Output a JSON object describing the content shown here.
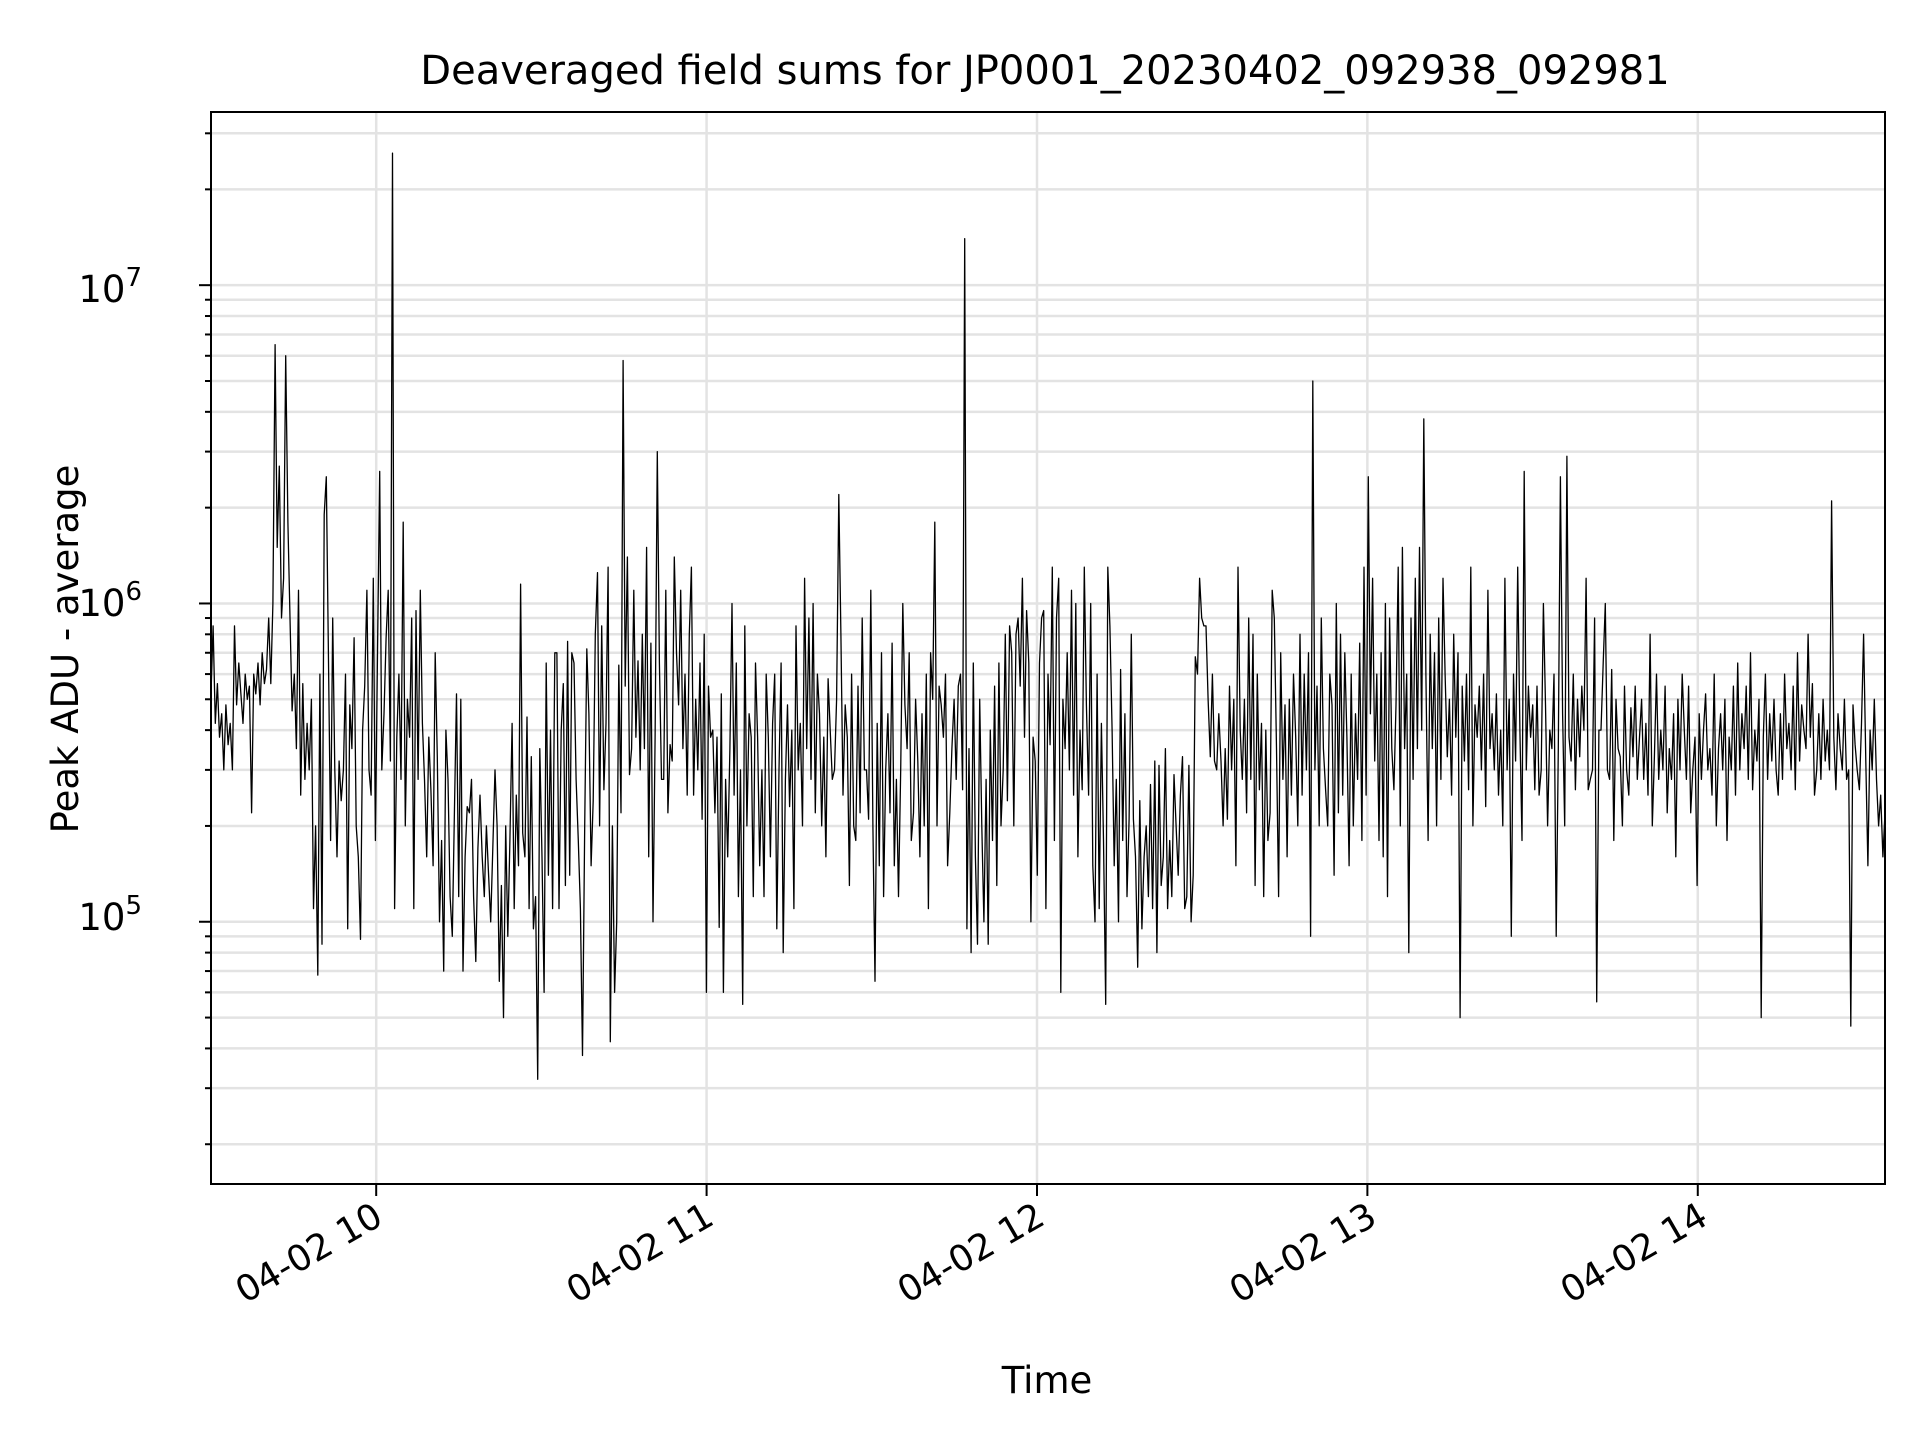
{
  "chart_data": {
    "type": "line",
    "title": "Deaveraged field sums for JP0001_20230402_092938_092981",
    "xlabel": "Time",
    "ylabel": "Peak ADU - average",
    "xlim": [
      "04-02 09:30",
      "04-02 14:34"
    ],
    "ylim": [
      15000,
      35000000
    ],
    "y_scale": "log",
    "grid": "major and minor",
    "x_tick_labels": [
      "04-02 10",
      "04-02 11",
      "04-02 12",
      "04-02 13",
      "04-02 14"
    ],
    "y_tick_labels": [
      {
        "base": "10",
        "exp": "5"
      },
      {
        "base": "10",
        "exp": "6"
      },
      {
        "base": "10",
        "exp": "7"
      }
    ],
    "series": [
      {
        "color": "#000000",
        "x_start": "04-02 09:30",
        "x_end": "04-02 14:34",
        "values": [
          520000,
          850000,
          420000,
          560000,
          380000,
          450000,
          300000,
          480000,
          360000,
          420000,
          300000,
          850000,
          480000,
          650000,
          520000,
          420000,
          600000,
          500000,
          550000,
          220000,
          600000,
          520000,
          650000,
          480000,
          700000,
          560000,
          620000,
          900000,
          560000,
          1000000,
          6500000,
          1500000,
          2700000,
          900000,
          1200000,
          6000000,
          1800000,
          900000,
          460000,
          600000,
          350000,
          1100000,
          250000,
          560000,
          280000,
          420000,
          300000,
          500000,
          110000,
          200000,
          68000,
          600000,
          85000,
          1900000,
          2500000,
          700000,
          180000,
          900000,
          300000,
          160000,
          320000,
          240000,
          300000,
          600000,
          95000,
          480000,
          350000,
          780000,
          200000,
          160000,
          88000,
          400000,
          550000,
          1100000,
          300000,
          250000,
          1200000,
          180000,
          700000,
          2600000,
          300000,
          450000,
          780000,
          1100000,
          320000,
          26000000,
          110000,
          380000,
          600000,
          280000,
          1800000,
          200000,
          500000,
          380000,
          900000,
          110000,
          950000,
          280000,
          1100000,
          420000,
          280000,
          160000,
          380000,
          260000,
          150000,
          700000,
          330000,
          100000,
          180000,
          70000,
          400000,
          280000,
          120000,
          90000,
          220000,
          520000,
          120000,
          500000,
          70000,
          160000,
          230000,
          220000,
          280000,
          120000,
          75000,
          170000,
          250000,
          160000,
          120000,
          200000,
          140000,
          100000,
          170000,
          300000,
          200000,
          65000,
          130000,
          50000,
          200000,
          90000,
          180000,
          420000,
          110000,
          250000,
          150000,
          1150000,
          190000,
          160000,
          440000,
          110000,
          330000,
          95000,
          120000,
          32000,
          350000,
          160000,
          60000,
          650000,
          140000,
          400000,
          110000,
          700000,
          700000,
          110000,
          400000,
          560000,
          130000,
          760000,
          140000,
          700000,
          650000,
          280000,
          180000,
          110000,
          38000,
          200000,
          720000,
          450000,
          150000,
          240000,
          800000,
          1250000,
          200000,
          850000,
          260000,
          420000,
          1300000,
          42000,
          200000,
          60000,
          100000,
          640000,
          220000,
          5800000,
          550000,
          1400000,
          290000,
          350000,
          1100000,
          380000,
          660000,
          300000,
          800000,
          350000,
          1500000,
          160000,
          750000,
          100000,
          380000,
          3000000,
          650000,
          280000,
          280000,
          1100000,
          220000,
          360000,
          320000,
          1400000,
          700000,
          480000,
          1100000,
          350000,
          600000,
          250000,
          800000,
          1300000,
          250000,
          500000,
          300000,
          650000,
          210000,
          800000,
          60000,
          550000,
          380000,
          400000,
          220000,
          380000,
          96000,
          520000,
          60000,
          280000,
          160000,
          350000,
          1000000,
          250000,
          650000,
          120000,
          300000,
          55000,
          850000,
          200000,
          450000,
          380000,
          120000,
          650000,
          380000,
          150000,
          300000,
          120000,
          600000,
          380000,
          160000,
          420000,
          600000,
          95000,
          300000,
          650000,
          80000,
          280000,
          480000,
          230000,
          400000,
          110000,
          850000,
          300000,
          420000,
          200000,
          1200000,
          350000,
          900000,
          280000,
          1000000,
          220000,
          600000,
          450000,
          200000,
          380000,
          160000,
          580000,
          400000,
          280000,
          300000,
          500000,
          2200000,
          800000,
          250000,
          480000,
          380000,
          130000,
          600000,
          200000,
          180000,
          550000,
          220000,
          900000,
          300000,
          300000,
          210000,
          1100000,
          200000,
          65000,
          420000,
          150000,
          700000,
          120000,
          300000,
          450000,
          220000,
          750000,
          150000,
          280000,
          120000,
          300000,
          1000000,
          480000,
          350000,
          700000,
          180000,
          220000,
          500000,
          320000,
          160000,
          450000,
          200000,
          600000,
          110000,
          700000,
          500000,
          1800000,
          200000,
          550000,
          480000,
          380000,
          600000,
          150000,
          220000,
          350000,
          500000,
          280000,
          550000,
          600000,
          260000,
          14000000,
          95000,
          350000,
          80000,
          650000,
          160000,
          85000,
          500000,
          200000,
          100000,
          280000,
          85000,
          400000,
          180000,
          550000,
          130000,
          650000,
          200000,
          300000,
          800000,
          240000,
          850000,
          700000,
          200000,
          800000,
          900000,
          550000,
          1200000,
          380000,
          950000,
          650000,
          100000,
          380000,
          320000,
          140000,
          650000,
          900000,
          950000,
          110000,
          600000,
          360000,
          1300000,
          180000,
          900000,
          1200000,
          60000,
          500000,
          350000,
          700000,
          300000,
          1100000,
          250000,
          1000000,
          160000,
          400000,
          260000,
          1300000,
          480000,
          250000,
          1000000,
          150000,
          100000,
          600000,
          110000,
          420000,
          180000,
          55000,
          1300000,
          850000,
          400000,
          150000,
          280000,
          100000,
          620000,
          180000,
          450000,
          120000,
          210000,
          800000,
          210000,
          160000,
          72000,
          240000,
          95000,
          160000,
          200000,
          120000,
          270000,
          110000,
          320000,
          80000,
          310000,
          130000,
          160000,
          350000,
          110000,
          180000,
          120000,
          290000,
          200000,
          140000,
          250000,
          330000,
          110000,
          120000,
          310000,
          100000,
          140000,
          680000,
          600000,
          1200000,
          900000,
          850000,
          850000,
          500000,
          330000,
          600000,
          320000,
          300000,
          450000,
          320000,
          200000,
          350000,
          210000,
          550000,
          300000,
          500000,
          150000,
          1300000,
          400000,
          280000,
          500000,
          220000,
          900000,
          280000,
          800000,
          130000,
          600000,
          260000,
          420000,
          120000,
          400000,
          180000,
          220000,
          1100000,
          900000,
          350000,
          120000,
          700000,
          280000,
          480000,
          160000,
          500000,
          250000,
          600000,
          380000,
          200000,
          800000,
          250000,
          600000,
          300000,
          700000,
          90000,
          5000000,
          300000,
          550000,
          200000,
          900000,
          350000,
          260000,
          200000,
          600000,
          480000,
          140000,
          1000000,
          220000,
          800000,
          250000,
          700000,
          380000,
          150000,
          600000,
          200000,
          450000,
          280000,
          750000,
          180000,
          1300000,
          250000,
          2500000,
          450000,
          1200000,
          320000,
          600000,
          180000,
          700000,
          160000,
          1000000,
          120000,
          900000,
          350000,
          260000,
          480000,
          1300000,
          200000,
          1500000,
          350000,
          600000,
          80000,
          900000,
          280000,
          1200000,
          350000,
          1500000,
          400000,
          3800000,
          600000,
          180000,
          800000,
          350000,
          700000,
          200000,
          900000,
          280000,
          1200000,
          600000,
          330000,
          500000,
          250000,
          800000,
          380000,
          700000,
          50000,
          550000,
          320000,
          600000,
          260000,
          1300000,
          200000,
          480000,
          380000,
          550000,
          300000,
          600000,
          230000,
          1100000,
          350000,
          450000,
          300000,
          520000,
          250000,
          400000,
          200000,
          1200000,
          300000,
          500000,
          90000,
          600000,
          320000,
          1300000,
          400000,
          180000,
          2600000,
          300000,
          550000,
          380000,
          480000,
          260000,
          550000,
          250000,
          300000,
          1000000,
          480000,
          200000,
          400000,
          350000,
          600000,
          90000,
          350000,
          2500000,
          450000,
          200000,
          2900000,
          380000,
          320000,
          600000,
          260000,
          500000,
          330000,
          550000,
          400000,
          1200000,
          260000,
          280000,
          300000,
          900000,
          56000,
          400000,
          400000,
          650000,
          1000000,
          300000,
          280000,
          620000,
          180000,
          500000,
          350000,
          330000,
          200000,
          550000,
          300000,
          250000,
          470000,
          330000,
          550000,
          280000,
          380000,
          500000,
          280000,
          420000,
          250000,
          800000,
          200000,
          330000,
          600000,
          280000,
          400000,
          300000,
          550000,
          220000,
          350000,
          280000,
          450000,
          160000,
          500000,
          300000,
          600000,
          400000,
          280000,
          550000,
          220000,
          300000,
          380000,
          130000,
          450000,
          280000,
          400000,
          520000,
          300000,
          350000,
          250000,
          600000,
          200000,
          350000,
          450000,
          300000,
          500000,
          180000,
          380000,
          300000,
          550000,
          250000,
          650000,
          300000,
          450000,
          350000,
          550000,
          280000,
          700000,
          260000,
          400000,
          320000,
          500000,
          50000,
          380000,
          600000,
          280000,
          450000,
          320000,
          500000,
          300000,
          250000,
          450000,
          280000,
          600000,
          350000,
          420000,
          300000,
          550000,
          260000,
          700000,
          320000,
          480000,
          400000,
          350000,
          800000,
          380000,
          560000,
          250000,
          300000,
          450000,
          280000,
          500000,
          320000,
          400000,
          300000,
          2100000,
          380000,
          260000,
          450000,
          350000,
          300000,
          500000,
          280000,
          300000,
          47000,
          480000,
          360000,
          300000,
          260000,
          420000,
          800000,
          320000,
          150000,
          400000,
          300000,
          500000,
          280000,
          200000,
          250000,
          160000,
          220000
        ]
      }
    ]
  }
}
